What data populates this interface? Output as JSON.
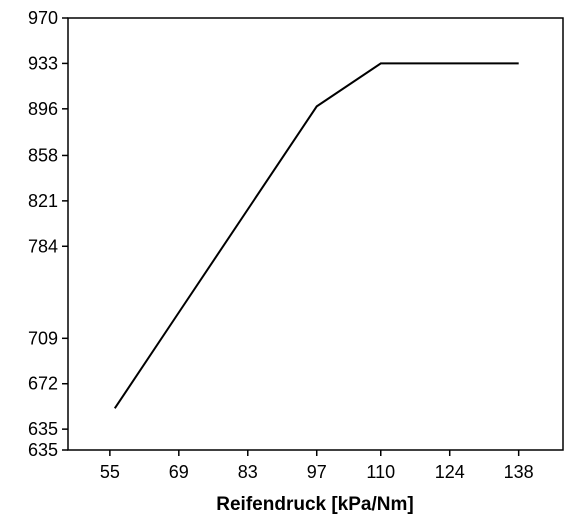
{
  "chart_data": {
    "type": "line",
    "title": "",
    "xlabel": "Reifendruck [kPa/Nm]",
    "ylabel": "",
    "x_ticks": [
      "55",
      "69",
      "83",
      "97",
      "110",
      "124",
      "138"
    ],
    "y_ticks": [
      "635",
      "635",
      "672",
      "709",
      "784",
      "821",
      "858",
      "896",
      "933",
      "970"
    ],
    "y_tick_positions": [
      635,
      635,
      672,
      709,
      784,
      821,
      858,
      896,
      933,
      970
    ],
    "xlim": [
      46.5,
      147
    ],
    "ylim": [
      618,
      970
    ],
    "grid": false,
    "legend": "none",
    "series": [
      {
        "x": [
          56,
          69,
          97,
          110,
          138
        ],
        "y": [
          652,
          730,
          898,
          933,
          933
        ]
      }
    ],
    "colors": {
      "line": "#000000",
      "axes": "#000000",
      "background": "#ffffff"
    }
  }
}
